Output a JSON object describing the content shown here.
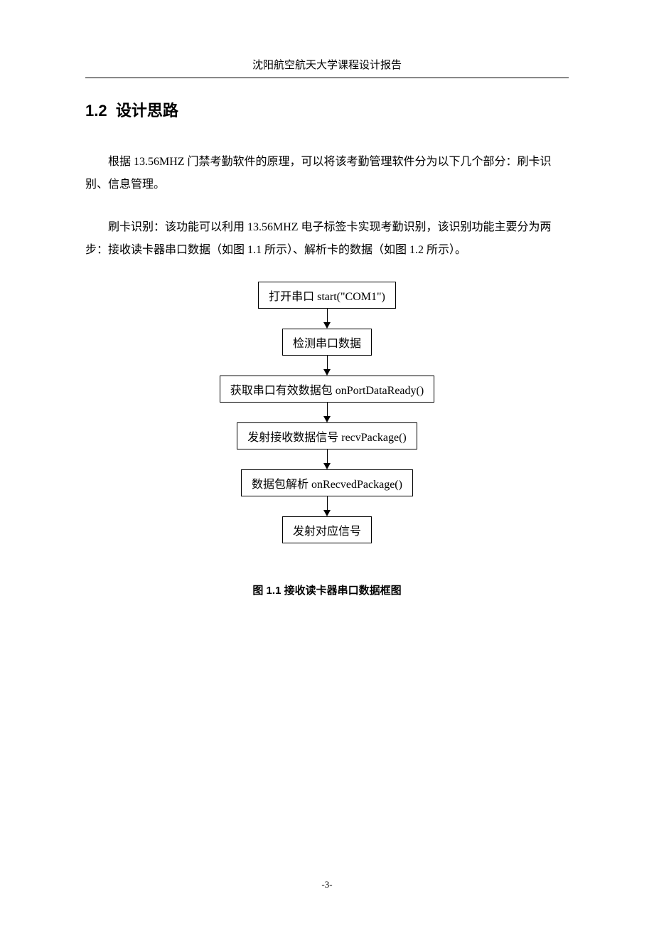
{
  "header": {
    "title": "沈阳航空航天大学课程设计报告"
  },
  "section": {
    "number": "1.2",
    "title": "设计思路"
  },
  "paragraphs": {
    "p1": "根据 13.56MHZ 门禁考勤软件的原理，可以将该考勤管理软件分为以下几个部分：刷卡识别、信息管理。",
    "p2": "刷卡识别：该功能可以利用 13.56MHZ 电子标签卡实现考勤识别，该识别功能主要分为两步：接收读卡器串口数据（如图 1.1 所示）、解析卡的数据（如图 1.2 所示）。"
  },
  "flowchart": {
    "type": "flowchart",
    "border_color": "#000000",
    "background_color": "#ffffff",
    "text_color": "#000000",
    "arrow_color": "#000000",
    "node_fontsize": 16,
    "nodes": [
      {
        "label": "打开串口 start(\"COM1\")"
      },
      {
        "label": "检测串口数据"
      },
      {
        "label": "获取串口有效数据包 onPortDataReady()"
      },
      {
        "label": "发射接收数据信号 recvPackage()"
      },
      {
        "label": "数据包解析 onRecvedPackage()"
      },
      {
        "label": "发射对应信号"
      }
    ]
  },
  "caption": {
    "text": "图 1.1  接收读卡器串口数据框图"
  },
  "footer": {
    "page_number": "-3-"
  }
}
